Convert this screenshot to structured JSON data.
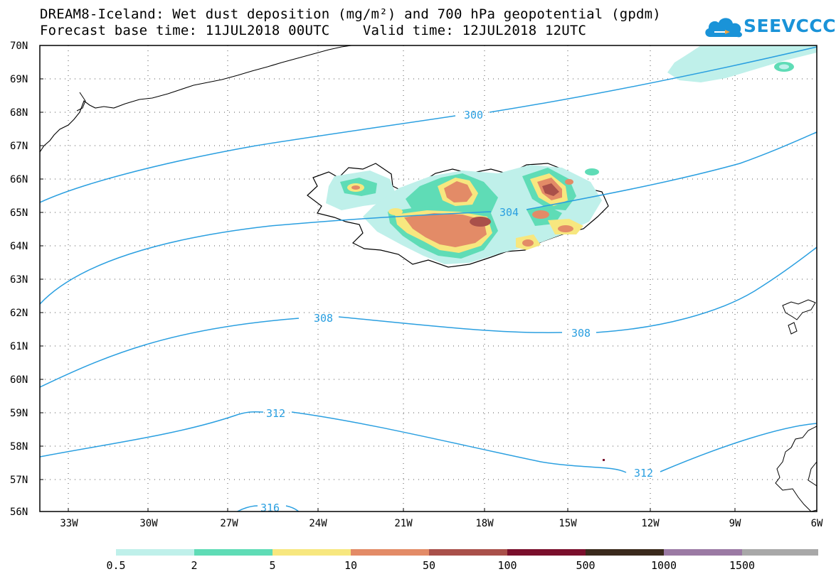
{
  "header": {
    "title_line1": "DREAM8-Iceland: Wet dust deposition (mg/m²) and 700 hPa geopotential (gpdm)",
    "title_line2": "Forecast base time: 11JUL2018 00UTC    Valid time: 12JUL2018 12UTC",
    "logo_text": "SEEVCCC",
    "logo_color": "#1a93d8"
  },
  "map": {
    "lat_labels": [
      "70N",
      "69N",
      "68N",
      "67N",
      "66N",
      "65N",
      "64N",
      "63N",
      "62N",
      "61N",
      "60N",
      "59N",
      "58N",
      "57N",
      "56N"
    ],
    "lon_labels": [
      "33W",
      "30W",
      "27W",
      "24W",
      "21W",
      "18W",
      "15W",
      "12W",
      "9W",
      "6W"
    ],
    "contour_color": "#2a9fe0",
    "contour_labels": [
      "300",
      "304",
      "308",
      "308",
      "312",
      "312",
      "316"
    ]
  },
  "legend": {
    "colors": [
      "#bff0ea",
      "#5fdcb6",
      "#f7e77f",
      "#e38b67",
      "#a9504a",
      "#7a0f2c",
      "#3a2a1c",
      "#9b7aa4",
      "#a8a8a8"
    ],
    "labels": [
      "0.5",
      "2",
      "5",
      "10",
      "50",
      "100",
      "500",
      "1000",
      "1500"
    ]
  }
}
